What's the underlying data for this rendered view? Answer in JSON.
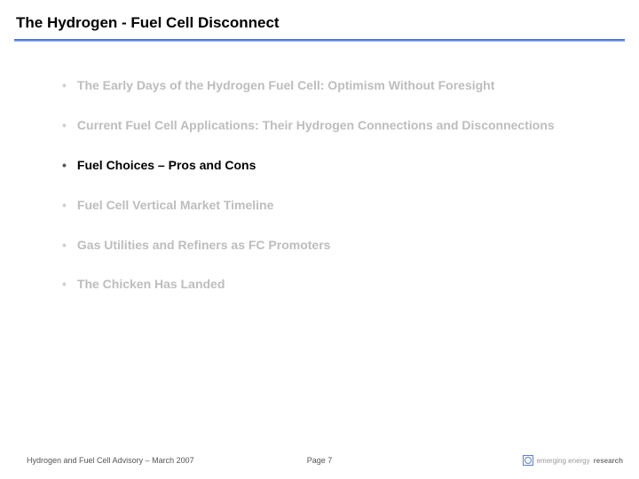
{
  "title": "The Hydrogen - Fuel Cell Disconnect",
  "bullets": [
    {
      "text": "The Early Days of the Hydrogen Fuel Cell: Optimism Without Foresight",
      "active": false
    },
    {
      "text": "Current Fuel Cell Applications: Their Hydrogen Connections and Disconnections",
      "active": false
    },
    {
      "text": "Fuel Choices – Pros and Cons",
      "active": true
    },
    {
      "text": "Fuel Cell Vertical Market Timeline",
      "active": false
    },
    {
      "text": "Gas Utilities and Refiners as FC Promoters",
      "active": false
    },
    {
      "text": "The Chicken Has Landed",
      "active": false
    }
  ],
  "footer": {
    "left": "Hydrogen and Fuel Cell Advisory – March 2007",
    "page": "Page 7",
    "brand1": "emerging energy",
    "brand2": "research"
  },
  "colors": {
    "rule_top": "#3a5fcd",
    "inactive_text": "#bdbdbd",
    "active_text": "#000000"
  }
}
